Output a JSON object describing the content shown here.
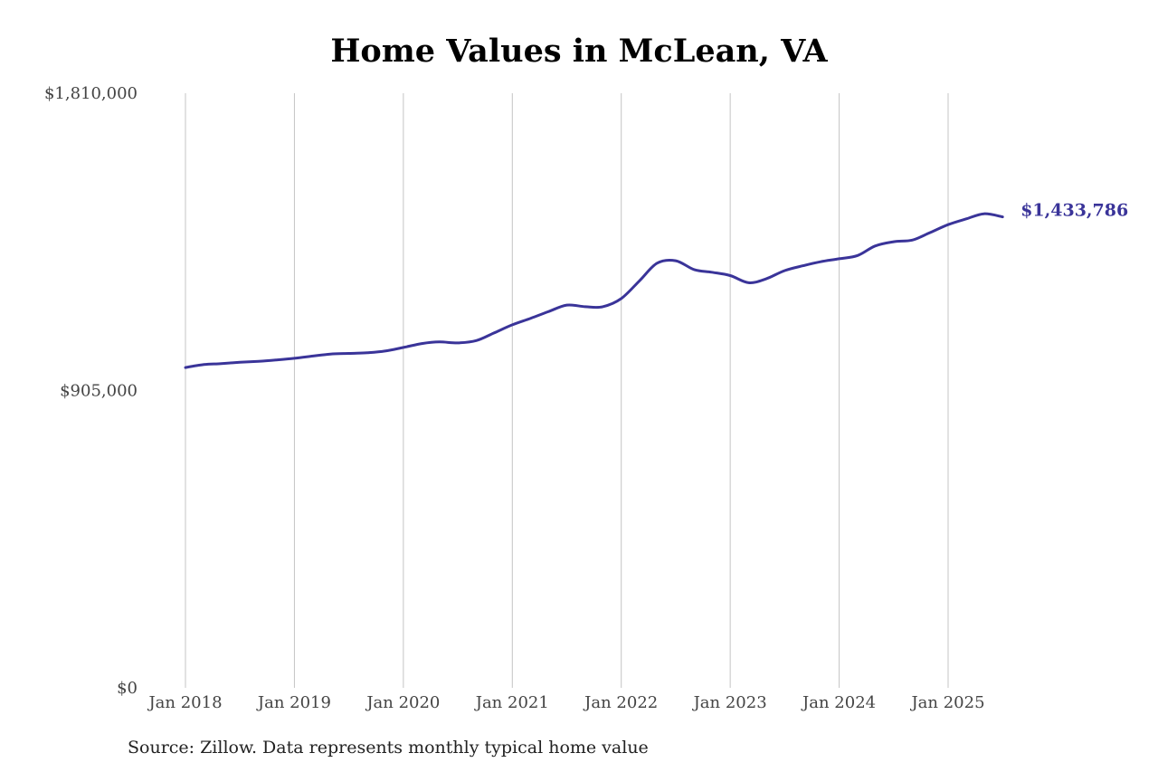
{
  "chart_data": {
    "type": "line",
    "title": "Home Values in McLean, VA",
    "source": "Source: Zillow. Data represents monthly typical home value",
    "xlabel": "",
    "ylabel": "",
    "ylim": [
      0,
      1810000
    ],
    "y_ticks": [
      {
        "value": 0,
        "label": "$0"
      },
      {
        "value": 905000,
        "label": "$905,000"
      },
      {
        "value": 1810000,
        "label": "$1,810,000"
      }
    ],
    "x_ticks": [
      {
        "value": 2018.0,
        "label": "Jan 2018"
      },
      {
        "value": 2019.0,
        "label": "Jan 2019"
      },
      {
        "value": 2020.0,
        "label": "Jan 2020"
      },
      {
        "value": 2021.0,
        "label": "Jan 2021"
      },
      {
        "value": 2022.0,
        "label": "Jan 2022"
      },
      {
        "value": 2023.0,
        "label": "Jan 2023"
      },
      {
        "value": 2024.0,
        "label": "Jan 2024"
      },
      {
        "value": 2025.0,
        "label": "Jan 2025"
      }
    ],
    "grid": "vertical",
    "series": [
      {
        "color": "#3a3499",
        "end_label": "$1,433,786",
        "points": [
          [
            2018.0,
            975000
          ],
          [
            2018.17,
            984000
          ],
          [
            2018.33,
            987000
          ],
          [
            2018.5,
            991000
          ],
          [
            2018.67,
            994000
          ],
          [
            2018.83,
            998000
          ],
          [
            2019.0,
            1003000
          ],
          [
            2019.17,
            1010000
          ],
          [
            2019.33,
            1016000
          ],
          [
            2019.5,
            1018000
          ],
          [
            2019.67,
            1020000
          ],
          [
            2019.83,
            1025000
          ],
          [
            2020.0,
            1036000
          ],
          [
            2020.17,
            1048000
          ],
          [
            2020.33,
            1053000
          ],
          [
            2020.5,
            1050000
          ],
          [
            2020.67,
            1057000
          ],
          [
            2020.83,
            1080000
          ],
          [
            2021.0,
            1105000
          ],
          [
            2021.17,
            1125000
          ],
          [
            2021.33,
            1145000
          ],
          [
            2021.5,
            1165000
          ],
          [
            2021.67,
            1160000
          ],
          [
            2021.83,
            1160000
          ],
          [
            2022.0,
            1185000
          ],
          [
            2022.17,
            1240000
          ],
          [
            2022.33,
            1293000
          ],
          [
            2022.5,
            1300000
          ],
          [
            2022.67,
            1273000
          ],
          [
            2022.83,
            1265000
          ],
          [
            2023.0,
            1255000
          ],
          [
            2023.17,
            1233000
          ],
          [
            2023.33,
            1245000
          ],
          [
            2023.5,
            1270000
          ],
          [
            2023.67,
            1285000
          ],
          [
            2023.83,
            1297000
          ],
          [
            2024.0,
            1306000
          ],
          [
            2024.17,
            1316000
          ],
          [
            2024.33,
            1345000
          ],
          [
            2024.5,
            1358000
          ],
          [
            2024.67,
            1363000
          ],
          [
            2024.83,
            1385000
          ],
          [
            2025.0,
            1410000
          ],
          [
            2025.17,
            1428000
          ],
          [
            2025.33,
            1443000
          ],
          [
            2025.5,
            1433786
          ]
        ]
      }
    ]
  }
}
